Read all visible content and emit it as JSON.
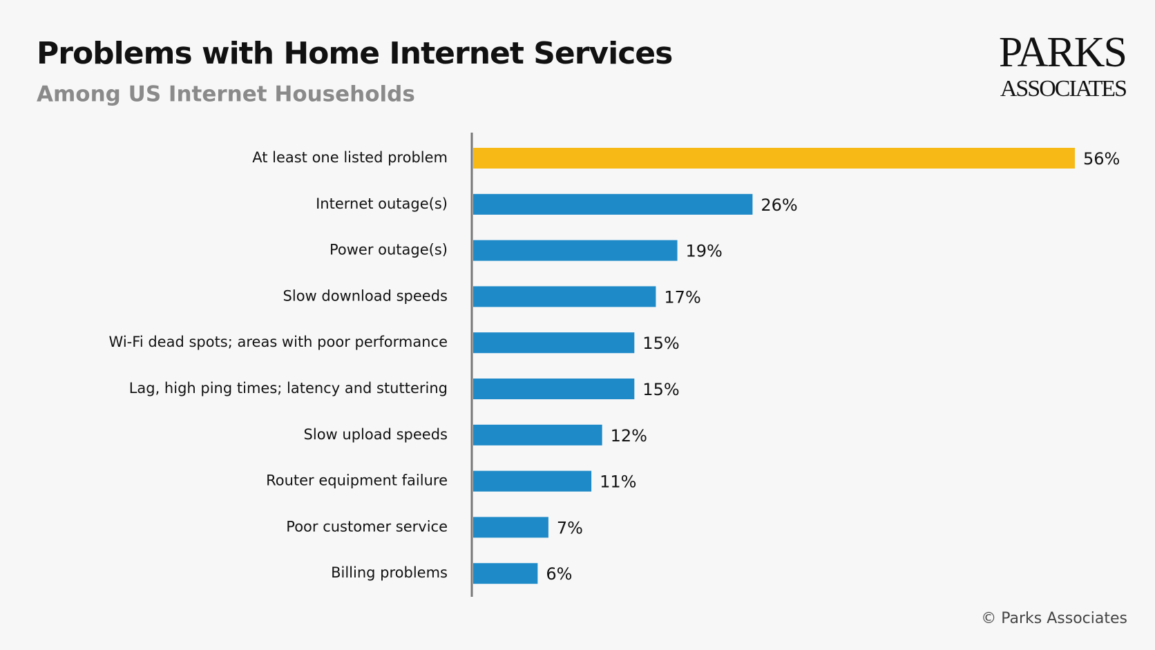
{
  "chart_data": {
    "type": "barh",
    "title": "Problems with Home Internet Services",
    "subtitle": "Among US Internet Households",
    "logo": [
      "PARKS",
      "ASSOCIATES"
    ],
    "source": "© Parks Associates",
    "categories": [
      "At least one listed problem",
      "Internet outage(s)",
      "Power outage(s)",
      "Slow download speeds",
      "Wi-Fi dead spots; areas with poor performance",
      "Lag, high ping times; latency and stuttering",
      "Slow upload speeds",
      "Router equipment failure",
      "Poor customer service",
      "Billing problems"
    ],
    "values": [
      56,
      26,
      19,
      17,
      15,
      15,
      12,
      11,
      7,
      6
    ],
    "value_labels": [
      "56%",
      "26%",
      "19%",
      "17%",
      "15%",
      "15%",
      "12%",
      "11%",
      "7%",
      "6%"
    ],
    "colors": [
      "#f6b915",
      "#1f8ac8",
      "#1f8ac8",
      "#1f8ac8",
      "#1f8ac8",
      "#1f8ac8",
      "#1f8ac8",
      "#1f8ac8",
      "#1f8ac8",
      "#1f8ac8"
    ]
  }
}
